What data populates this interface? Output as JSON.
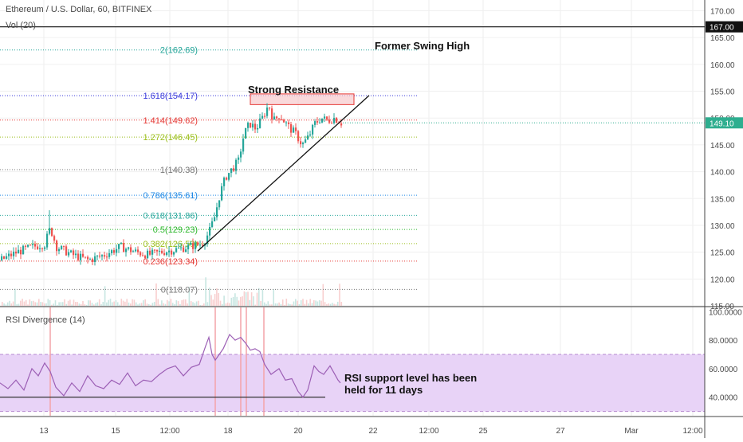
{
  "colors": {
    "bull": "#26a69a",
    "bear": "#ef5350",
    "rsi_line": "#9c5fb5",
    "rsi_band": "#e8d3f7",
    "volume": "#c8e6e2",
    "price_marker": "#2eae8f",
    "swing_line": "#111111",
    "divergence": "#f4a3a8"
  },
  "chart_data": [
    {
      "type": "candlestick",
      "title": "Ethereum / U.S. Dollar, 60, BITFINEX",
      "indicator_label": "Vol (20)",
      "ylim": [
        115,
        172
      ],
      "yticks": [
        "170.00",
        "165.00",
        "160.00",
        "155.00",
        "150.00",
        "145.00",
        "140.00",
        "135.00",
        "130.00",
        "125.00",
        "120.00",
        "115.00"
      ],
      "swing_high": {
        "value": 167.0,
        "label": "167.00"
      },
      "last_price": {
        "value": 149.1,
        "label": "149.10"
      },
      "fibonacci_levels": [
        {
          "label": "2(162.69)",
          "value": 162.69,
          "color": "#26a69a"
        },
        {
          "label": "1.618(154.17)",
          "value": 154.17,
          "color": "#3b3bdb"
        },
        {
          "label": "1.414(149.62)",
          "value": 149.62,
          "color": "#e53935"
        },
        {
          "label": "1.272(146.45)",
          "value": 146.45,
          "color": "#9bbf1b"
        },
        {
          "label": "1(140.38)",
          "value": 140.38,
          "color": "#787878"
        },
        {
          "label": "0.786(135.61)",
          "value": 135.61,
          "color": "#1e88e5"
        },
        {
          "label": "0.618(131.86)",
          "value": 131.86,
          "color": "#26a69a"
        },
        {
          "label": "0.5(129.23)",
          "value": 129.23,
          "color": "#2eb82e"
        },
        {
          "label": "0.382(126.59)",
          "value": 126.59,
          "color": "#9bbf1b"
        },
        {
          "label": "0.236(123.34)",
          "value": 123.34,
          "color": "#e53935"
        },
        {
          "label": "0(118.07)",
          "value": 118.07,
          "color": "#787878"
        }
      ],
      "resistance_zone": [
        152.5,
        154.5
      ],
      "annotations": [
        "Former Swing High",
        "Strong Resistance"
      ],
      "x_labels": [
        "13",
        "15",
        "12:00",
        "18",
        "20",
        "22",
        "12:00",
        "25",
        "27",
        "Mar",
        "12:00"
      ],
      "price_anchors": [
        [
          0,
          123.5
        ],
        [
          20,
          125.0
        ],
        [
          40,
          126.0
        ],
        [
          55,
          126.5
        ],
        [
          62,
          129.5
        ],
        [
          70,
          126.0
        ],
        [
          90,
          124.5
        ],
        [
          110,
          123.5
        ],
        [
          130,
          124.5
        ],
        [
          150,
          126.0
        ],
        [
          170,
          125.0
        ],
        [
          185,
          124.5
        ],
        [
          200,
          125.0
        ],
        [
          220,
          125.5
        ],
        [
          235,
          126.0
        ],
        [
          250,
          126.5
        ],
        [
          255,
          127.0
        ],
        [
          262,
          129.0
        ],
        [
          268,
          131.5
        ],
        [
          275,
          136.0
        ],
        [
          282,
          139.0
        ],
        [
          290,
          140.5
        ],
        [
          298,
          142.0
        ],
        [
          305,
          147.0
        ],
        [
          312,
          149.0
        ],
        [
          320,
          148.0
        ],
        [
          328,
          150.0
        ],
        [
          336,
          152.5
        ],
        [
          342,
          149.5
        ],
        [
          350,
          150.5
        ],
        [
          360,
          148.5
        ],
        [
          370,
          147.0
        ],
        [
          378,
          145.0
        ],
        [
          386,
          146.5
        ],
        [
          394,
          149.0
        ],
        [
          402,
          150.0
        ],
        [
          410,
          149.5
        ],
        [
          418,
          150.0
        ],
        [
          424,
          149.5
        ],
        [
          428,
          149.0
        ]
      ]
    },
    {
      "type": "line",
      "title": "RSI Divergence (14)",
      "ylim": [
        27,
        103
      ],
      "yticks": [
        "100.0000",
        "80.0000",
        "60.0000",
        "40.0000"
      ],
      "band": [
        30,
        70
      ],
      "support_level": 40,
      "annotation": [
        "RSI support level has been",
        "held for 11 days"
      ],
      "divergence_markers": [
        "13",
        "18",
        "18",
        "18",
        "19"
      ],
      "series": [
        {
          "values": [
            [
              0,
              50
            ],
            [
              10,
              46
            ],
            [
              20,
              52
            ],
            [
              30,
              45
            ],
            [
              40,
              60
            ],
            [
              48,
              55
            ],
            [
              56,
              64
            ],
            [
              63,
              58
            ],
            [
              70,
              47
            ],
            [
              80,
              41
            ],
            [
              90,
              50
            ],
            [
              100,
              44
            ],
            [
              110,
              55
            ],
            [
              120,
              48
            ],
            [
              130,
              46
            ],
            [
              140,
              52
            ],
            [
              150,
              49
            ],
            [
              160,
              57
            ],
            [
              170,
              48
            ],
            [
              180,
              52
            ],
            [
              190,
              51
            ],
            [
              200,
              56
            ],
            [
              210,
              60
            ],
            [
              220,
              62
            ],
            [
              230,
              55
            ],
            [
              240,
              61
            ],
            [
              250,
              63
            ],
            [
              258,
              76
            ],
            [
              262,
              82
            ],
            [
              266,
              70
            ],
            [
              270,
              66
            ],
            [
              280,
              74
            ],
            [
              288,
              84
            ],
            [
              295,
              80
            ],
            [
              302,
              82
            ],
            [
              308,
              78
            ],
            [
              314,
              73
            ],
            [
              320,
              74
            ],
            [
              326,
              72
            ],
            [
              332,
              63
            ],
            [
              340,
              56
            ],
            [
              350,
              60
            ],
            [
              358,
              52
            ],
            [
              366,
              53
            ],
            [
              374,
              44
            ],
            [
              380,
              40
            ],
            [
              386,
              45
            ],
            [
              394,
              62
            ],
            [
              400,
              58
            ],
            [
              406,
              56
            ],
            [
              414,
              62
            ],
            [
              420,
              56
            ],
            [
              424,
              52
            ],
            [
              427,
              50
            ]
          ]
        }
      ]
    }
  ]
}
